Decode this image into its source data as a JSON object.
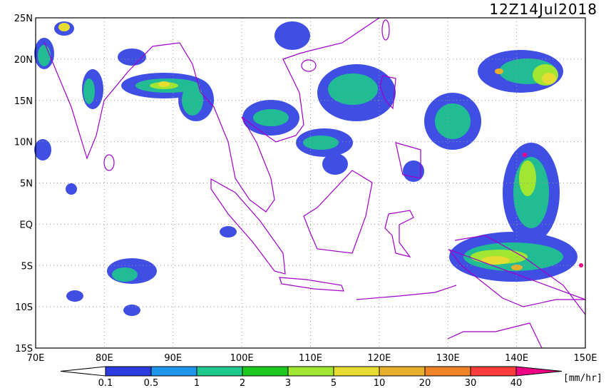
{
  "title": "12Z14Jul2018",
  "lat_labels": [
    "25N",
    "20N",
    "15N",
    "10N",
    "5N",
    "EQ",
    "5S",
    "10S",
    "15S"
  ],
  "lon_labels": [
    "70E",
    "80E",
    "90E",
    "100E",
    "110E",
    "120E",
    "130E",
    "140E",
    "150E"
  ],
  "colorbar": {
    "levels": [
      0.1,
      0.5,
      1,
      2,
      3,
      5,
      10,
      20,
      30,
      40
    ],
    "colors": [
      "#2b3be0",
      "#1e96ec",
      "#1ec88c",
      "#1ec81e",
      "#a0e632",
      "#e6dc32",
      "#e6af2d",
      "#f08228",
      "#fa3c3c",
      "#f00082"
    ],
    "unit": "[mm/hr]"
  }
}
